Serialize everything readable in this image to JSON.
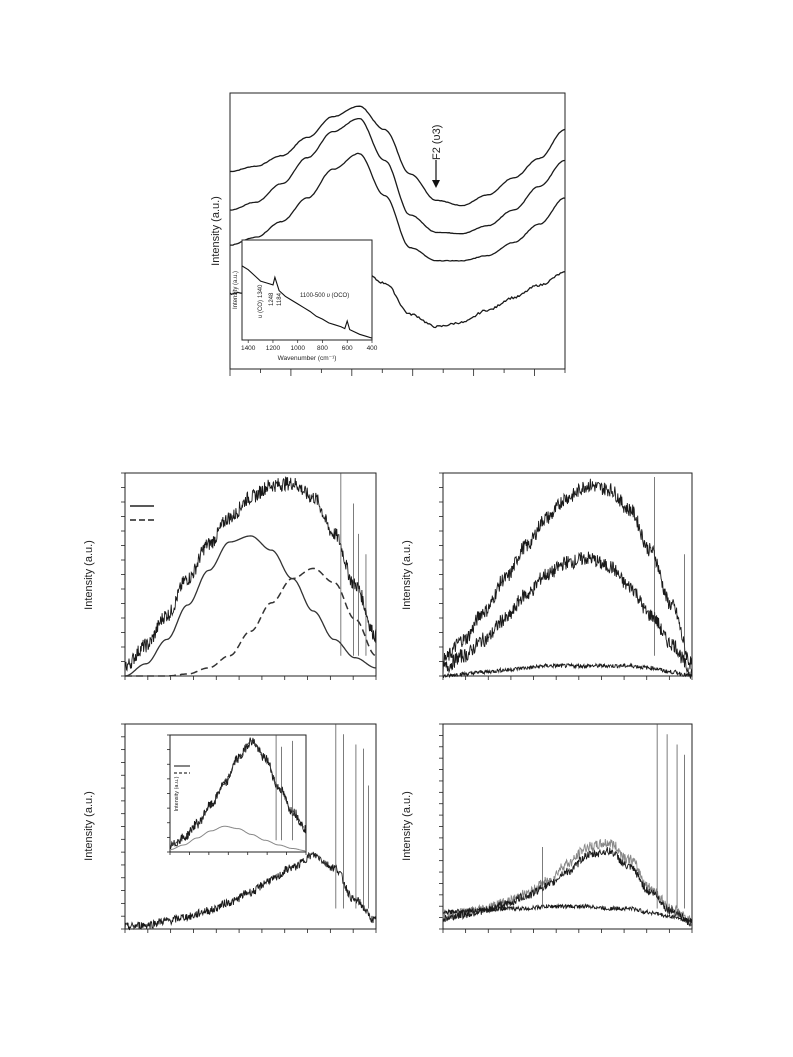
{
  "figure_a": {
    "ylabel": "Intensity (a.u.)",
    "annotation": "F2 (υ3)",
    "inset": {
      "ylabel": "Intensity (a.u.)",
      "xlabel": "Wavenumber (cm⁻¹)",
      "xticks": [
        "1400",
        "1200",
        "1000",
        "800",
        "600",
        "400"
      ],
      "ann_1340": "1340",
      "ann_co": "υ (CO)",
      "ann_1248": "1248",
      "ann_1184": "1184",
      "ann_oco": "1100-500 υ (OCO)"
    }
  },
  "panel_b": {
    "ylabel": "Intensity (a.u.)"
  },
  "panel_c": {
    "ylabel": "Intensity (a.u.)"
  },
  "panel_d": {
    "ylabel": "Intensity (a.u.)",
    "inset_ylabel": "Intensity (a.u.)"
  },
  "panel_e": {
    "ylabel": "Intensity (a.u.)"
  },
  "colors": {
    "trace": "#1a1a1a",
    "fit": "#333333",
    "grey_trace": "#888888"
  },
  "chart_data": [
    {
      "type": "line",
      "panel": "figure_a",
      "series": [
        {
          "values": [
            0.4,
            0.44,
            0.52,
            0.66,
            0.82,
            0.9,
            0.72,
            0.38,
            0.18,
            0.14,
            0.22,
            0.35,
            0.5,
            0.72
          ]
        },
        {
          "values": [
            0.22,
            0.28,
            0.42,
            0.62,
            0.82,
            0.92,
            0.6,
            0.18,
            0.05,
            0.04,
            0.1,
            0.22,
            0.4,
            0.6
          ]
        },
        {
          "values": [
            0.12,
            0.18,
            0.3,
            0.48,
            0.7,
            0.82,
            0.5,
            0.1,
            0.0,
            0.0,
            0.04,
            0.14,
            0.28,
            0.48
          ]
        },
        {
          "values": [
            0.1,
            0.12,
            0.16,
            0.22,
            0.3,
            0.34,
            0.2,
            -0.1,
            -0.22,
            -0.18,
            -0.06,
            0.06,
            0.18,
            0.3
          ]
        }
      ]
    },
    {
      "type": "line",
      "panel": "figure_a_inset",
      "x": [
        1450,
        1400,
        1350,
        1300,
        1250,
        1200,
        1184,
        1150,
        1100,
        1050,
        1000,
        950,
        900,
        850,
        800,
        750,
        700,
        650,
        620,
        600,
        580,
        550,
        500,
        450,
        400
      ],
      "values": [
        0.78,
        0.74,
        0.68,
        0.62,
        0.6,
        0.58,
        0.66,
        0.52,
        0.46,
        0.42,
        0.38,
        0.34,
        0.3,
        0.25,
        0.22,
        0.18,
        0.16,
        0.14,
        0.12,
        0.2,
        0.11,
        0.09,
        0.06,
        0.04,
        0.02
      ],
      "xlim": [
        1450,
        400
      ]
    },
    {
      "type": "line",
      "panel": "panel_b",
      "series": [
        {
          "values": [
            0.05,
            0.15,
            0.3,
            0.48,
            0.65,
            0.78,
            0.88,
            0.94,
            0.95,
            0.88,
            0.7,
            0.45,
            0.2
          ]
        },
        {
          "values": [
            0.0,
            0.06,
            0.18,
            0.35,
            0.52,
            0.66,
            0.69,
            0.62,
            0.48,
            0.32,
            0.18,
            0.09,
            0.04
          ]
        },
        {
          "values": [
            0.0,
            0.0,
            0.0,
            0.01,
            0.04,
            0.1,
            0.22,
            0.36,
            0.48,
            0.53,
            0.46,
            0.28,
            0.1
          ]
        }
      ]
    },
    {
      "type": "line",
      "panel": "panel_c",
      "series": [
        {
          "values": [
            0.08,
            0.18,
            0.32,
            0.48,
            0.64,
            0.78,
            0.88,
            0.94,
            0.92,
            0.82,
            0.62,
            0.35,
            0.06
          ]
        },
        {
          "values": [
            0.04,
            0.1,
            0.18,
            0.28,
            0.4,
            0.5,
            0.56,
            0.58,
            0.54,
            0.44,
            0.3,
            0.16,
            0.02
          ]
        },
        {
          "values": [
            0.0,
            0.01,
            0.02,
            0.03,
            0.04,
            0.05,
            0.05,
            0.05,
            0.05,
            0.05,
            0.04,
            0.02,
            0.0
          ]
        }
      ]
    },
    {
      "type": "line",
      "panel": "panel_d",
      "series": [
        {
          "values": [
            0.01,
            0.02,
            0.04,
            0.06,
            0.09,
            0.13,
            0.18,
            0.24,
            0.3,
            0.36,
            0.3,
            0.14,
            0.04
          ]
        }
      ]
    },
    {
      "type": "line",
      "panel": "panel_d_inset",
      "series": [
        {
          "values": [
            0.05,
            0.12,
            0.24,
            0.4,
            0.58,
            0.8,
            0.95,
            0.8,
            0.55,
            0.35,
            0.2
          ]
        },
        {
          "values": [
            0.02,
            0.06,
            0.12,
            0.18,
            0.22,
            0.2,
            0.15,
            0.1,
            0.06,
            0.03,
            0.01
          ]
        }
      ]
    },
    {
      "type": "line",
      "panel": "panel_e",
      "series": [
        {
          "values": [
            0.06,
            0.08,
            0.1,
            0.13,
            0.17,
            0.23,
            0.32,
            0.4,
            0.42,
            0.34,
            0.2,
            0.1,
            0.04
          ]
        },
        {
          "values": [
            0.08,
            0.09,
            0.09,
            0.1,
            0.1,
            0.11,
            0.11,
            0.11,
            0.1,
            0.1,
            0.08,
            0.06,
            0.04
          ]
        },
        {
          "values": [
            0.05,
            0.07,
            0.09,
            0.12,
            0.16,
            0.21,
            0.28,
            0.36,
            0.38,
            0.3,
            0.18,
            0.09,
            0.03
          ]
        }
      ]
    }
  ]
}
